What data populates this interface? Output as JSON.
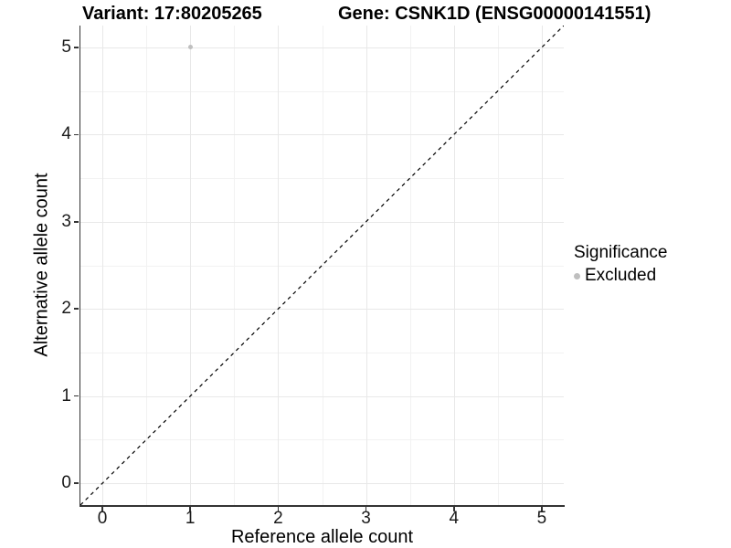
{
  "header": {
    "variant_title": "Variant: 17:80205265",
    "gene_title": "Gene: CSNK1D (ENSG00000141551)"
  },
  "chart_data": {
    "type": "scatter",
    "title_left": "Variant: 17:80205265",
    "title_right": "Gene: CSNK1D (ENSG00000141551)",
    "xlabel": "Reference allele count",
    "ylabel": "Alternative allele count",
    "xlim": [
      -0.25,
      5.25
    ],
    "ylim": [
      -0.25,
      5.25
    ],
    "x_ticks": [
      0,
      1,
      2,
      3,
      4,
      5
    ],
    "y_ticks": [
      0,
      1,
      2,
      3,
      4,
      5
    ],
    "x_minor_ticks": [
      0.5,
      1.5,
      2.5,
      3.5,
      4.5
    ],
    "y_minor_ticks": [
      0.5,
      1.5,
      2.5,
      3.5,
      4.5
    ],
    "grid": "on",
    "points": [
      {
        "x": 1,
        "y": 5,
        "series": "Excluded"
      }
    ],
    "reference_line": {
      "type": "identity",
      "style": "dashed",
      "from": [
        -0.25,
        -0.25
      ],
      "to": [
        5.25,
        5.25
      ]
    },
    "legend": {
      "title": "Significance",
      "position": "right",
      "items": [
        {
          "label": "Excluded",
          "color": "#bfbfbf"
        }
      ]
    }
  },
  "colors": {
    "background": "#ffffff",
    "grid_major": "#e8e8e8",
    "grid_minor": "#f2f2f2",
    "axis_line": "#333333",
    "point": "#bfbfbf",
    "reference_line": "#000000",
    "text": "#000000"
  }
}
